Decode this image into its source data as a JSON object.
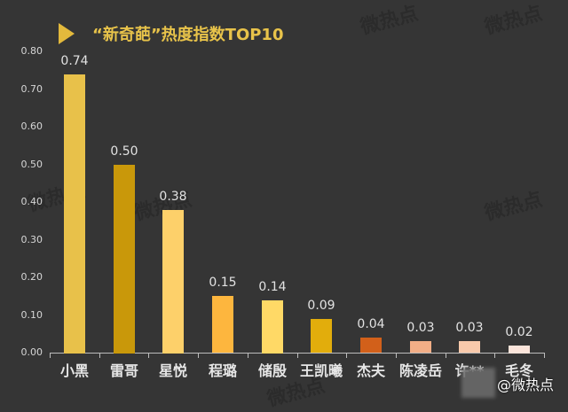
{
  "chart_data": {
    "type": "bar",
    "title": "“新奇葩”热度指数TOP10",
    "xlabel": "",
    "ylabel": "",
    "ylim": [
      0,
      0.8
    ],
    "yticks": [
      "0.00",
      "0.10",
      "0.20",
      "0.30",
      "0.40",
      "0.50",
      "0.60",
      "0.70",
      "0.80"
    ],
    "grid": false,
    "legend": null,
    "categories": [
      "小黑",
      "雷哥",
      "星悦",
      "程璐",
      "储殷",
      "王凯曦",
      "杰夫",
      "陈凌岳",
      "许**",
      "毛冬"
    ],
    "values": [
      0.74,
      0.5,
      0.38,
      0.15,
      0.14,
      0.09,
      0.04,
      0.03,
      0.03,
      0.02
    ],
    "value_labels": [
      "0.74",
      "0.50",
      "0.38",
      "0.15",
      "0.14",
      "0.09",
      "0.04",
      "0.03",
      "0.03",
      "0.02"
    ],
    "colors": [
      "#e8c14a",
      "#c9980a",
      "#fdd06a",
      "#fdb63e",
      "#ffd966",
      "#e2ad0c",
      "#d2601a",
      "#f2ae86",
      "#f8c9ab",
      "#fbe4da"
    ]
  },
  "title_icon": "play-triangle-icon",
  "title_color": "#e8c34a",
  "background": "#353535",
  "credit": "@微热点",
  "watermark": "微热点"
}
